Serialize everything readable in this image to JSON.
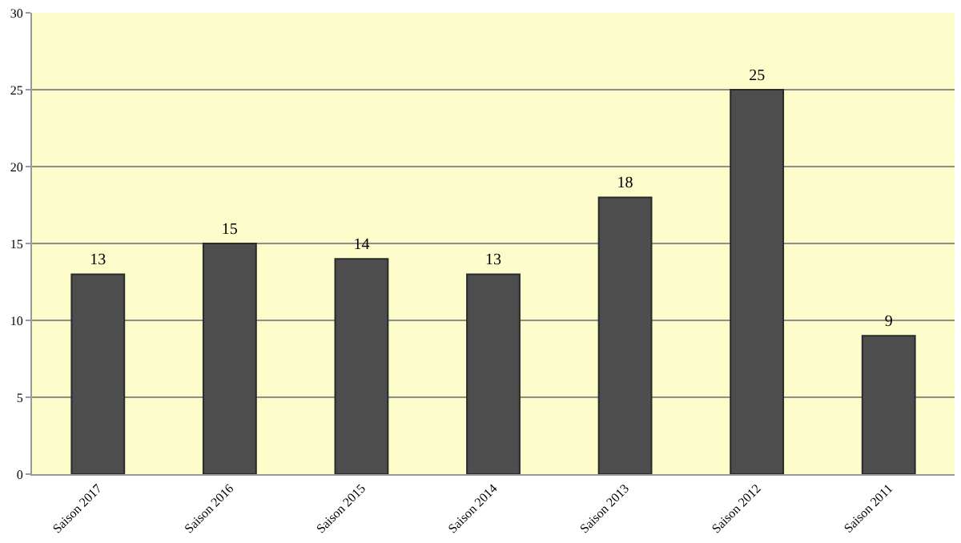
{
  "chart_data": {
    "type": "bar",
    "categories": [
      "Saison 2017",
      "Saison 2016",
      "Saison 2015",
      "Saison 2014",
      "Saison 2013",
      "Saison 2012",
      "Saison 2011"
    ],
    "values": [
      13,
      15,
      14,
      13,
      18,
      25,
      9
    ],
    "color": "#4d4d4d",
    "ylim": [
      0,
      30
    ],
    "yticks": [
      0,
      5,
      10,
      15,
      20,
      25,
      30
    ],
    "grid": "y",
    "data_labels": true
  }
}
